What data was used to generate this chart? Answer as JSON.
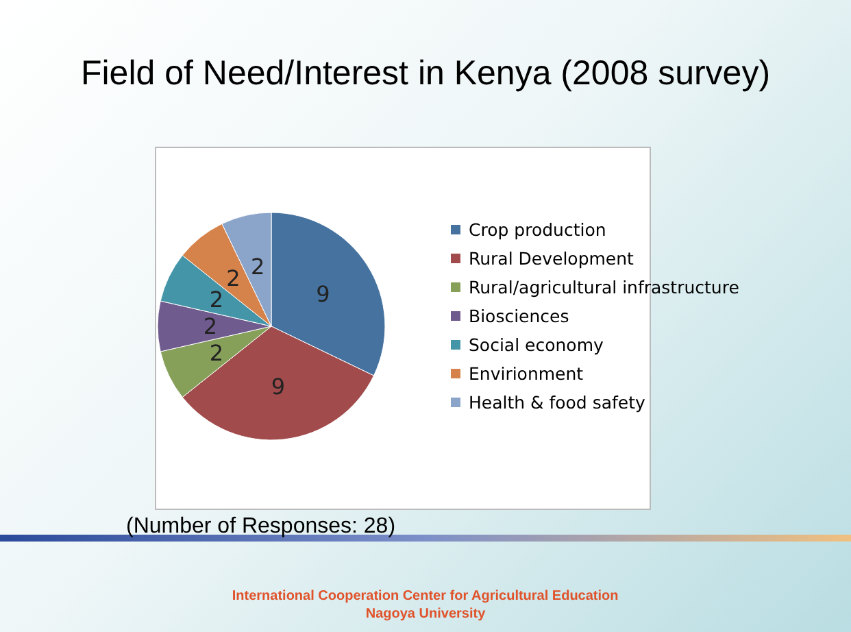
{
  "chart_data": {
    "type": "pie",
    "title": "Field of Need/Interest in Kenya (2008 survey)",
    "categories": [
      "Crop production",
      "Rural Development",
      "Rural/agricultural infrastructure",
      "Biosciences",
      "Social economy",
      "Envirionment",
      "Health & food safety"
    ],
    "values": [
      9,
      9,
      2,
      2,
      2,
      2,
      2
    ],
    "colors": [
      "#4672a0",
      "#a14b4c",
      "#86a05a",
      "#6f5b8e",
      "#4495a8",
      "#d5824b",
      "#8ba4c9"
    ],
    "data_labels": true,
    "legend": "right",
    "annotations": [
      "(Number of Responses: 28)",
      "International Cooperation Center for Agricultural Education",
      "Nagoya University"
    ]
  }
}
